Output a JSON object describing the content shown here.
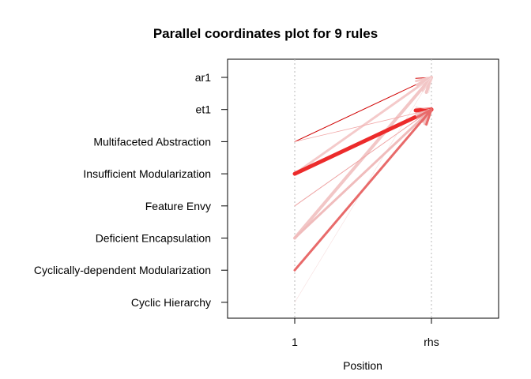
{
  "chart_data": {
    "type": "parallel-coordinates",
    "title": "Parallel coordinates plot for 9 rules",
    "xlabel": "Position",
    "x_positions": [
      "1",
      "rhs"
    ],
    "items": [
      "ar1",
      "et1",
      "Multifaceted Abstraction",
      "Insufficient Modularization",
      "Feature Envy",
      "Deficient Encapsulation",
      "Cyclically-dependent Modularization",
      "Cyclic Hierarchy"
    ],
    "rules": [
      {
        "lhs": "Multifaceted Abstraction",
        "rhs": "ar1",
        "width": 1.0,
        "color": "#d00000"
      },
      {
        "lhs": "Insufficient Modularization",
        "rhs": "ar1",
        "width": 3.0,
        "color": "#f4caca"
      },
      {
        "lhs": "Deficient Encapsulation",
        "rhs": "ar1",
        "width": 4.0,
        "color": "#f2c6c6"
      },
      {
        "lhs": "Cyclic Hierarchy",
        "rhs": "ar1",
        "width": 0.6,
        "color": "#f6dede"
      },
      {
        "lhs": "Insufficient Modularization",
        "rhs": "et1",
        "width": 5.0,
        "color": "#ec2b2b"
      },
      {
        "lhs": "Multifaceted Abstraction",
        "rhs": "et1",
        "width": 0.8,
        "color": "#f1a6a6"
      },
      {
        "lhs": "Feature Envy",
        "rhs": "et1",
        "width": 1.0,
        "color": "#eea3a3"
      },
      {
        "lhs": "Deficient Encapsulation",
        "rhs": "et1",
        "width": 3.0,
        "color": "#f0bcbc"
      },
      {
        "lhs": "Cyclically-dependent Modularization",
        "rhs": "et1",
        "width": 3.0,
        "color": "#e86a6a"
      }
    ],
    "grid": "vertical dotted at each position",
    "legend": "none"
  }
}
